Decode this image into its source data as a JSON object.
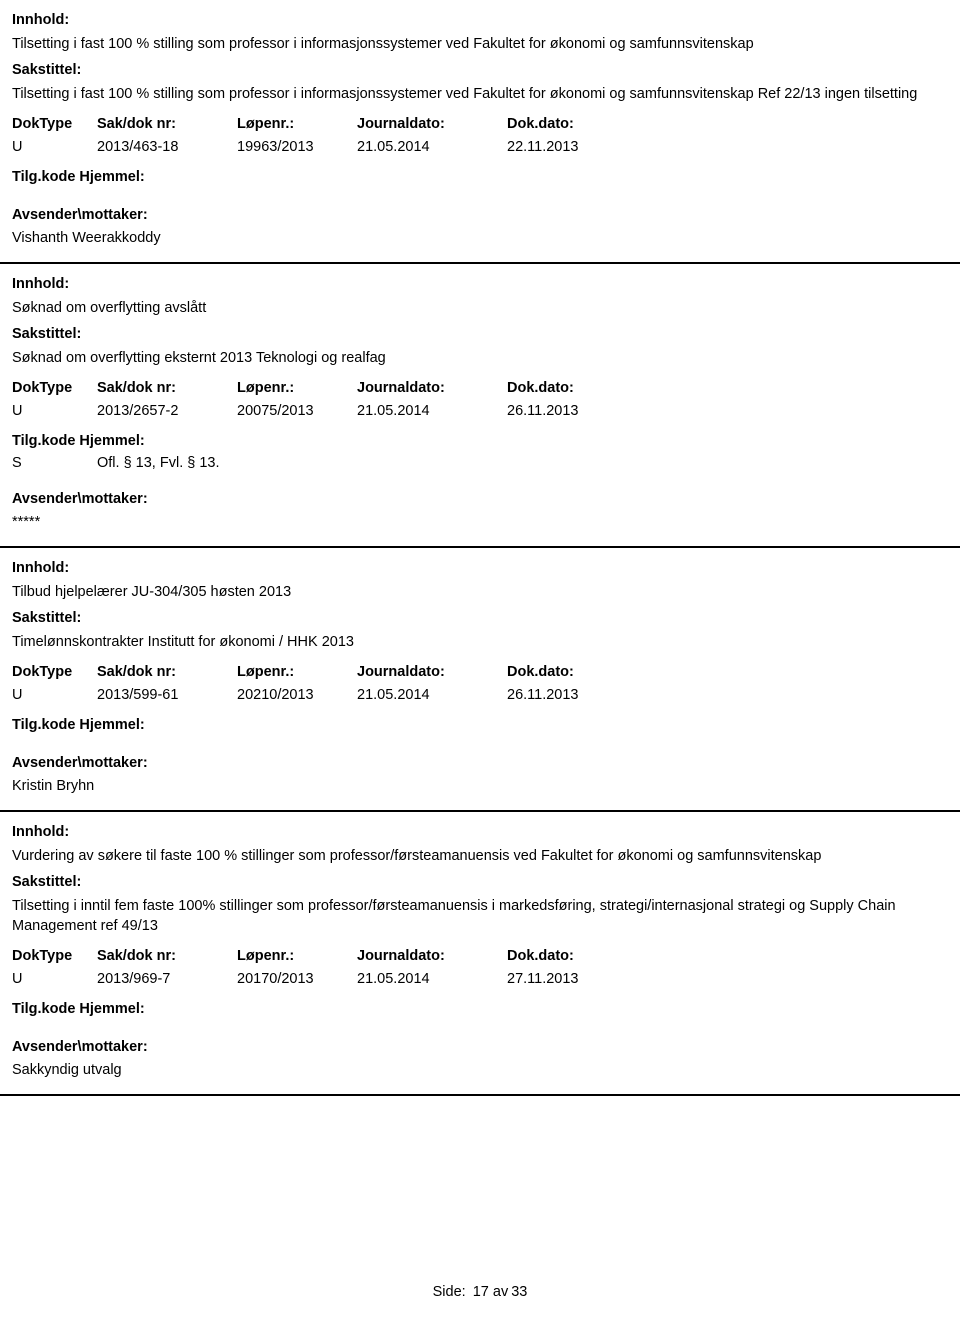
{
  "labels": {
    "innhold": "Innhold:",
    "sakstittel": "Sakstittel:",
    "doktype": "DokType",
    "sakdoknr": "Sak/dok nr:",
    "lopenr": "Løpenr.:",
    "journaldato": "Journaldato:",
    "dokdato": "Dok.dato:",
    "tilgkode": "Tilg.kode",
    "hjemmel": "Hjemmel:",
    "avsender": "Avsender\\mottaker:"
  },
  "entries": [
    {
      "innhold": "Tilsetting i fast 100 % stilling som professor i informasjonssystemer ved Fakultet for økonomi og samfunnsvitenskap",
      "sakstittel": "Tilsetting i fast 100 % stilling som professor i informasjonssystemer ved Fakultet for økonomi og samfunnsvitenskap Ref 22/13 ingen tilsetting",
      "doktype": "U",
      "sakdoknr": "2013/463-18",
      "lopenr": "19963/2013",
      "journaldato": "21.05.2014",
      "dokdato": "22.11.2013",
      "tilgkode": "",
      "hjemmel": "",
      "mottaker": "Vishanth Weerakkoddy"
    },
    {
      "innhold": "Søknad om overflytting avslått",
      "sakstittel": "Søknad om overflytting eksternt 2013 Teknologi og realfag",
      "doktype": "U",
      "sakdoknr": "2013/2657-2",
      "lopenr": "20075/2013",
      "journaldato": "21.05.2014",
      "dokdato": "26.11.2013",
      "tilgkode": "S",
      "hjemmel": "Ofl. § 13, Fvl. § 13.",
      "mottaker": "*****"
    },
    {
      "innhold": "Tilbud hjelpelærer JU-304/305 høsten 2013",
      "sakstittel": "Timelønnskontrakter Institutt for økonomi / HHK 2013",
      "doktype": "U",
      "sakdoknr": "2013/599-61",
      "lopenr": "20210/2013",
      "journaldato": "21.05.2014",
      "dokdato": "26.11.2013",
      "tilgkode": "",
      "hjemmel": "",
      "mottaker": "Kristin Bryhn"
    },
    {
      "innhold": "Vurdering av søkere til faste 100 % stillinger som professor/førsteamanuensis ved Fakultet for økonomi og samfunnsvitenskap",
      "sakstittel": "Tilsetting i inntil fem faste 100% stillinger som professor/førsteamanuensis i markedsføring, strategi/internasjonal strategi og Supply Chain Management ref 49/13",
      "doktype": "U",
      "sakdoknr": "2013/969-7",
      "lopenr": "20170/2013",
      "journaldato": "21.05.2014",
      "dokdato": "27.11.2013",
      "tilgkode": "",
      "hjemmel": "",
      "mottaker": "Sakkyndig utvalg"
    }
  ],
  "footer": {
    "pre": "Side:",
    "current": "17",
    "of": "av",
    "total": "33"
  }
}
